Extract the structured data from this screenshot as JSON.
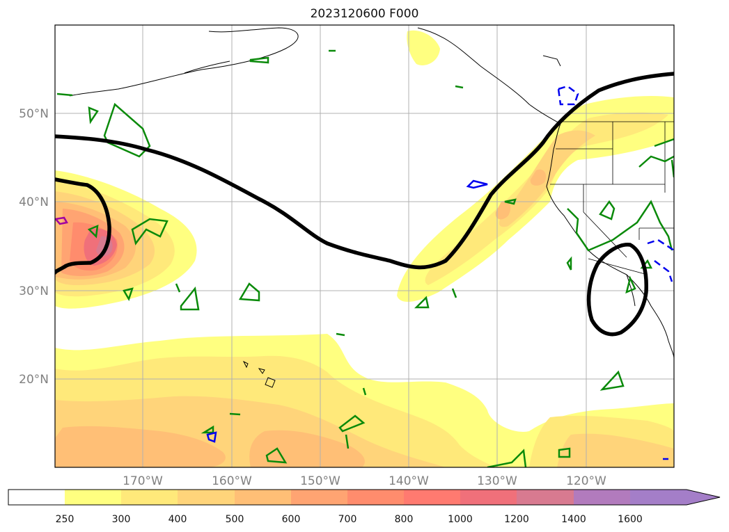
{
  "title": "2023120600 F000",
  "map": {
    "lat_labels": [
      "50°N",
      "40°N",
      "30°N",
      "20°N"
    ],
    "lon_labels": [
      "170°W",
      "160°W",
      "150°W",
      "140°W",
      "130°W",
      "120°W"
    ],
    "label_color": "#808080",
    "extent": {
      "lon_min": -180,
      "lon_max": -110,
      "lat_min": 10,
      "lat_max": 60
    },
    "layers": [
      "filled contour (shaded)",
      "black thick contour",
      "green contours",
      "blue contours",
      "dashed blue contours",
      "magenta contour",
      "coastlines",
      "state borders"
    ]
  },
  "colorbar": {
    "ticks": [
      "250",
      "300",
      "400",
      "500",
      "600",
      "700",
      "800",
      "1000",
      "1200",
      "1400",
      "1600"
    ],
    "extend": "max",
    "colors": [
      "#ffffff",
      "#ffff80",
      "#ffe97a",
      "#ffd47a",
      "#ffbf76",
      "#ffa472",
      "#ff8c6d",
      "#ff7a70",
      "#f0707a",
      "#d87a90",
      "#b27bbd",
      "#a47ec8"
    ]
  }
}
